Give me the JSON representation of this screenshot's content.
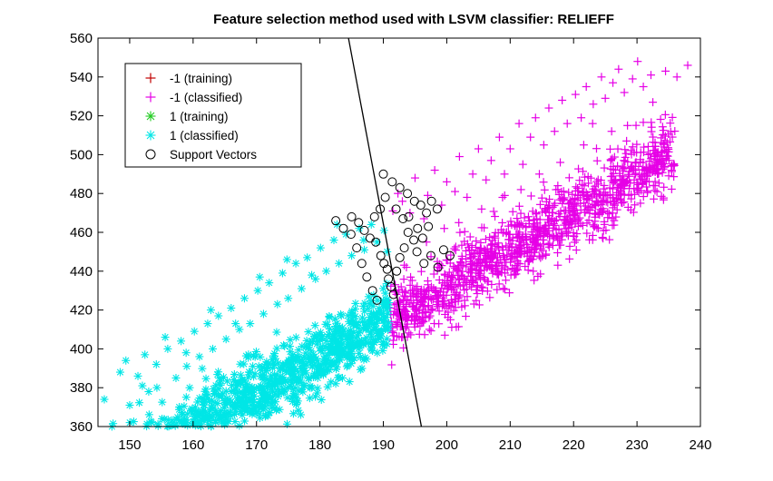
{
  "chart_data": {
    "type": "scatter",
    "title": "Feature selection method used with LSVM classifier: RELIEFF",
    "xlabel": "",
    "ylabel": "",
    "xlim": [
      145,
      240
    ],
    "ylim": [
      360,
      560
    ],
    "xticks": [
      150,
      160,
      170,
      180,
      190,
      200,
      210,
      220,
      230,
      240
    ],
    "yticks": [
      360,
      380,
      400,
      420,
      440,
      460,
      480,
      500,
      520,
      540,
      560
    ],
    "grid": false,
    "legend_position": "top-left",
    "legend": [
      {
        "label": "-1 (training)",
        "marker": "plus",
        "color": "#c00000"
      },
      {
        "label": "-1 (classified)",
        "marker": "plus",
        "color": "#e600e6"
      },
      {
        "label": "1 (training)",
        "marker": "asterisk",
        "color": "#22cc22"
      },
      {
        "label": "1 (classified)",
        "marker": "asterisk",
        "color": "#00e6e6"
      },
      {
        "label": "Support Vectors",
        "marker": "circle",
        "color": "#000000"
      }
    ],
    "decision_boundary": {
      "type": "line",
      "points": [
        [
          184.5,
          560
        ],
        [
          196.0,
          360
        ]
      ],
      "color": "#000000"
    },
    "series": [
      {
        "name": "-1 (classified)",
        "marker": "plus",
        "color": "#e600e6",
        "trend": {
          "x_start": 191,
          "x_end": 236,
          "y_at_x0": 412.55,
          "slope": 1.9
        },
        "points": [
          [
            191.5,
            471
          ],
          [
            192.3,
            480
          ],
          [
            193.0,
            476
          ],
          [
            194.2,
            470
          ],
          [
            195.0,
            488
          ],
          [
            196.4,
            467
          ],
          [
            197.0,
            479
          ],
          [
            198.1,
            492
          ],
          [
            199.2,
            474
          ],
          [
            200.0,
            486
          ],
          [
            201.3,
            481
          ],
          [
            202.0,
            499
          ],
          [
            203.2,
            478
          ],
          [
            204.1,
            490
          ],
          [
            205.0,
            503
          ],
          [
            206.2,
            487
          ],
          [
            207.0,
            497
          ],
          [
            208.3,
            509
          ],
          [
            209.1,
            490
          ],
          [
            210.0,
            503
          ],
          [
            211.4,
            516
          ],
          [
            212.0,
            495
          ],
          [
            213.2,
            509
          ],
          [
            214.0,
            519
          ],
          [
            215.3,
            505
          ],
          [
            216.1,
            524
          ],
          [
            217.0,
            512
          ],
          [
            218.2,
            528
          ],
          [
            219.0,
            516
          ],
          [
            220.3,
            531
          ],
          [
            221.2,
            519
          ],
          [
            222.0,
            535
          ],
          [
            223.1,
            526
          ],
          [
            224.4,
            540
          ],
          [
            225.0,
            529
          ],
          [
            226.2,
            537
          ],
          [
            227.1,
            544
          ],
          [
            228.0,
            532
          ],
          [
            229.3,
            539
          ],
          [
            230.1,
            548
          ],
          [
            231.0,
            535
          ],
          [
            232.2,
            541
          ],
          [
            234.5,
            543
          ],
          [
            236.3,
            540
          ],
          [
            238.0,
            546
          ],
          [
            196.8,
            455
          ],
          [
            199.6,
            462
          ],
          [
            201.9,
            465
          ],
          [
            205.5,
            472
          ],
          [
            208.8,
            478
          ],
          [
            211.7,
            482
          ],
          [
            214.6,
            490
          ],
          [
            217.9,
            496
          ],
          [
            221.6,
            505
          ],
          [
            226.0,
            512
          ],
          [
            228.5,
            515
          ],
          [
            232.5,
            527
          ],
          [
            223.0,
            516
          ]
        ]
      },
      {
        "name": "1 (classified)",
        "marker": "asterisk",
        "color": "#00e6e6",
        "trend": {
          "x_start": 146,
          "x_end": 191,
          "y_at_x0": 414.91,
          "slope": 1.88
        },
        "points": [
          [
            146.0,
            374
          ],
          [
            147.2,
            360
          ],
          [
            148.5,
            388
          ],
          [
            150.0,
            371
          ],
          [
            151.3,
            386
          ],
          [
            152.4,
            397
          ],
          [
            153.0,
            378
          ],
          [
            154.2,
            392
          ],
          [
            155.1,
            364
          ],
          [
            156.0,
            400
          ],
          [
            157.3,
            385
          ],
          [
            158.1,
            404
          ],
          [
            159.0,
            391
          ],
          [
            160.2,
            409
          ],
          [
            161.0,
            396
          ],
          [
            162.3,
            413
          ],
          [
            163.1,
            400
          ],
          [
            164.0,
            417
          ],
          [
            165.2,
            405
          ],
          [
            166.0,
            421
          ],
          [
            167.3,
            410
          ],
          [
            168.1,
            426
          ],
          [
            169.0,
            413
          ],
          [
            170.2,
            430
          ],
          [
            171.1,
            418
          ],
          [
            172.0,
            434
          ],
          [
            173.3,
            423
          ],
          [
            174.1,
            439
          ],
          [
            175.0,
            426
          ],
          [
            176.2,
            444
          ],
          [
            177.1,
            431
          ],
          [
            178.0,
            447
          ],
          [
            179.3,
            436
          ],
          [
            180.1,
            452
          ],
          [
            181.0,
            440
          ],
          [
            182.2,
            456
          ],
          [
            183.0,
            444
          ],
          [
            184.1,
            459
          ],
          [
            185.0,
            448
          ],
          [
            186.2,
            462
          ],
          [
            187.0,
            451
          ],
          [
            188.1,
            464
          ],
          [
            189.0,
            455
          ],
          [
            190.1,
            461
          ],
          [
            190.6,
            450
          ],
          [
            149.4,
            394
          ],
          [
            152.0,
            381
          ],
          [
            155.6,
            406
          ],
          [
            158.9,
            398
          ],
          [
            162.8,
            420
          ],
          [
            166.7,
            413
          ],
          [
            170.5,
            437
          ],
          [
            174.8,
            446
          ],
          [
            178.7,
            438
          ],
          [
            182.7,
            464
          ],
          [
            186.9,
            456
          ],
          [
            175.6,
            389
          ]
        ]
      },
      {
        "name": "Support Vectors",
        "marker": "circle",
        "color": "#000000",
        "points": [
          [
            185.0,
            468
          ],
          [
            186.1,
            465
          ],
          [
            187.0,
            461
          ],
          [
            187.9,
            457
          ],
          [
            188.8,
            455
          ],
          [
            189.6,
            448
          ],
          [
            190.1,
            444
          ],
          [
            190.6,
            441
          ],
          [
            190.8,
            436
          ],
          [
            191.2,
            432
          ],
          [
            191.6,
            428
          ],
          [
            192.1,
            440
          ],
          [
            192.6,
            447
          ],
          [
            193.3,
            452
          ],
          [
            193.9,
            460
          ],
          [
            194.8,
            456
          ],
          [
            195.4,
            462
          ],
          [
            196.2,
            457
          ],
          [
            197.1,
            463
          ],
          [
            190.0,
            490
          ],
          [
            191.4,
            486
          ],
          [
            192.6,
            483
          ],
          [
            193.8,
            480
          ],
          [
            194.9,
            476
          ],
          [
            195.9,
            474
          ],
          [
            196.8,
            470
          ],
          [
            197.6,
            476
          ],
          [
            198.5,
            472
          ],
          [
            189.0,
            425
          ],
          [
            188.3,
            430
          ],
          [
            187.4,
            437
          ],
          [
            186.6,
            444
          ],
          [
            185.8,
            452
          ],
          [
            184.9,
            459
          ],
          [
            183.7,
            462
          ],
          [
            182.5,
            466
          ],
          [
            190.3,
            478
          ],
          [
            189.5,
            472
          ],
          [
            188.6,
            468
          ],
          [
            192.0,
            472
          ],
          [
            193.1,
            467
          ],
          [
            194.0,
            468
          ],
          [
            195.3,
            450
          ],
          [
            196.4,
            444
          ],
          [
            197.5,
            448
          ],
          [
            198.6,
            442
          ],
          [
            199.5,
            451
          ],
          [
            200.5,
            448
          ]
        ]
      }
    ]
  }
}
